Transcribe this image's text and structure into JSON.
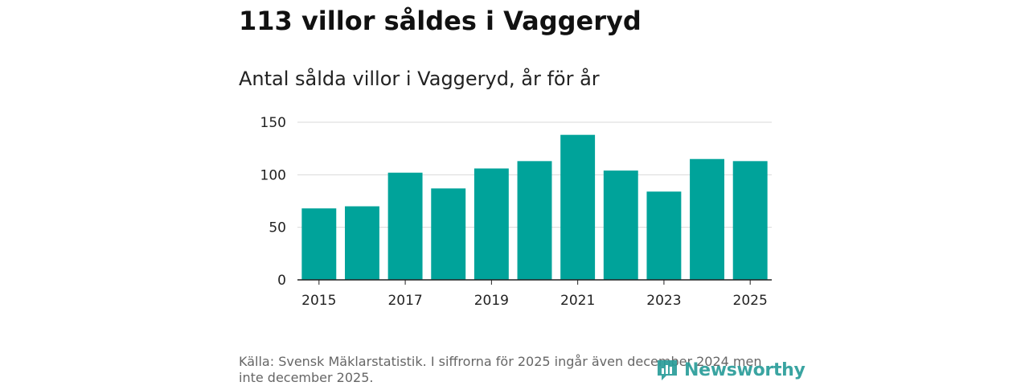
{
  "header": {
    "title": "113 villor såldes i Vaggeryd",
    "subtitle": "Antal sålda villor i Vaggeryd, år för år"
  },
  "chart_data": {
    "type": "bar",
    "categories": [
      "2015",
      "2016",
      "2017",
      "2018",
      "2019",
      "2020",
      "2021",
      "2022",
      "2023",
      "2024",
      "2025"
    ],
    "values": [
      68,
      70,
      102,
      87,
      106,
      113,
      138,
      104,
      84,
      115,
      113
    ],
    "x_tick_labels": [
      "2015",
      "2017",
      "2019",
      "2021",
      "2023",
      "2025"
    ],
    "y_ticks": [
      0,
      50,
      100,
      150
    ],
    "ylim": [
      0,
      150
    ],
    "xlabel": "",
    "ylabel": "",
    "grid": true,
    "legend": "none",
    "bar_color": "#00a39a"
  },
  "footer": {
    "source": "Källa: Svensk Mäklarstatistik. I siffrorna för 2025 ingår även december 2024 men inte december 2025.",
    "brand": "Newsworthy",
    "brand_icon": "bar-chart-icon",
    "brand_color": "#2a9d9a"
  }
}
